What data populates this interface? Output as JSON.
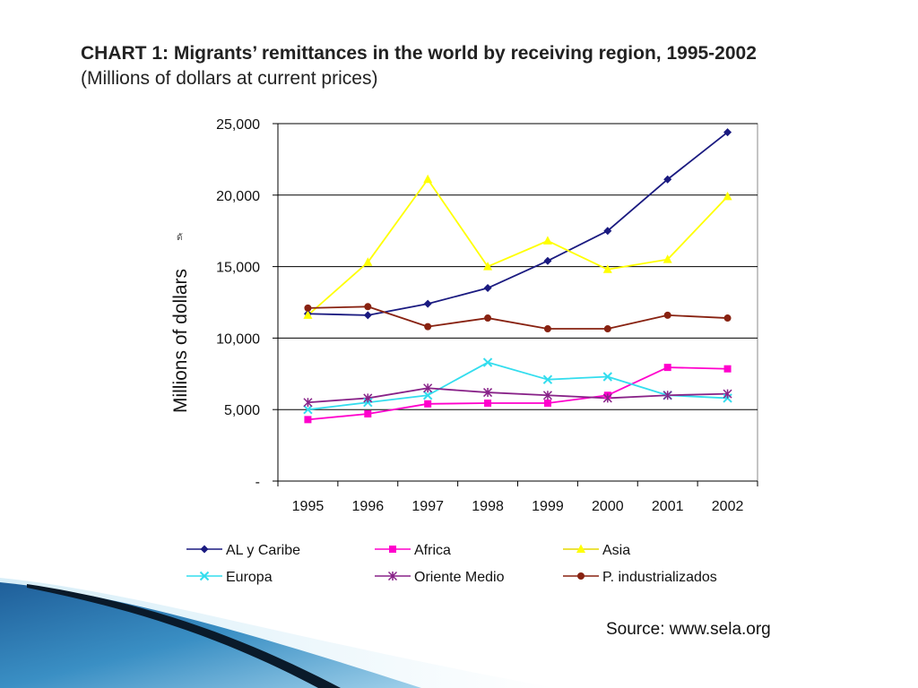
{
  "slide": {
    "title": "CHART 1:  Migrants’ remittances in the world by receiving region, 1995-2002",
    "subtitle": "(Millions of dollars at current prices)",
    "source": "Source: www.sela.org",
    "stray_mark": "ดั"
  },
  "chart_data": {
    "type": "line",
    "title": "",
    "xlabel": "",
    "ylabel": "Millions of dollars",
    "categories": [
      "1995",
      "1996",
      "1997",
      "1998",
      "1999",
      "2000",
      "2001",
      "2002"
    ],
    "ylim": [
      0,
      25000
    ],
    "yticks": [
      0,
      5000,
      10000,
      15000,
      20000,
      25000
    ],
    "ytick_labels": [
      "-",
      "5,000",
      "10,000",
      "15,000",
      "20,000",
      "25,000"
    ],
    "grid": true,
    "legend_position": "bottom",
    "series": [
      {
        "name": "AL y Caribe",
        "marker": "diamond",
        "color": "#1a1a80",
        "values": [
          11700,
          11600,
          12400,
          13500,
          15400,
          17500,
          21100,
          24400
        ]
      },
      {
        "name": "Africa",
        "marker": "square",
        "color": "#ff00cc",
        "values": [
          4300,
          4700,
          5400,
          5450,
          5450,
          6000,
          7950,
          7850
        ]
      },
      {
        "name": "Asia",
        "marker": "triangle",
        "color": "#ffff00",
        "values": [
          11600,
          15300,
          21100,
          15000,
          16800,
          14800,
          15500,
          19900
        ]
      },
      {
        "name": "Europa",
        "marker": "x",
        "color": "#33ddee",
        "values": [
          5000,
          5500,
          6000,
          8300,
          7100,
          7300,
          6000,
          5800
        ]
      },
      {
        "name": "Oriente Medio",
        "marker": "star",
        "color": "#882288",
        "values": [
          5500,
          5800,
          6500,
          6200,
          6000,
          5800,
          6000,
          6100
        ]
      },
      {
        "name": "P. industrializados",
        "marker": "circle",
        "color": "#882211",
        "values": [
          12100,
          12200,
          10800,
          11400,
          10650,
          10650,
          11600,
          11400
        ]
      }
    ]
  }
}
